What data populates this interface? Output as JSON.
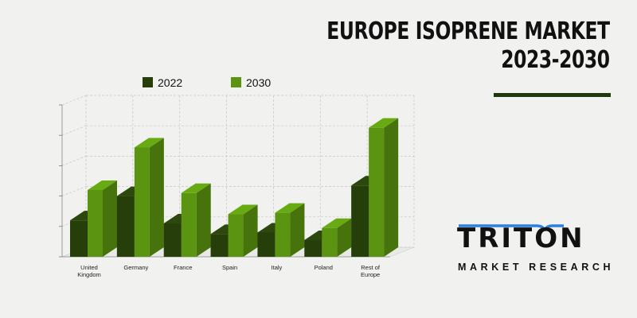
{
  "title": {
    "line1": "EUROPE ISOPRENE MARKET",
    "line2": "2023-2030"
  },
  "logo": {
    "name": "TRITON",
    "tagline": "MARKET RESEARCH"
  },
  "colors": {
    "series_2022": "#263f0a",
    "series_2030": "#5a9410",
    "accent_rule": "#1e3a0c",
    "logo_blue": "#2d7fe0"
  },
  "chart_data": {
    "type": "bar",
    "title": "",
    "xlabel": "",
    "ylabel": "",
    "categories": [
      "United Kingdom",
      "Germany",
      "France",
      "Spain",
      "Italy",
      "Poland",
      "Rest of Europe"
    ],
    "category_lines": [
      [
        "United",
        "Kingdom"
      ],
      [
        "Germany"
      ],
      [
        "France"
      ],
      [
        "Spain"
      ],
      [
        "Italy"
      ],
      [
        "Poland"
      ],
      [
        "Rest of",
        "Europe"
      ]
    ],
    "series": [
      {
        "name": "2022",
        "values": [
          1.2,
          2.0,
          1.1,
          0.75,
          0.8,
          0.55,
          2.35
        ]
      },
      {
        "name": "2030",
        "values": [
          2.2,
          3.6,
          2.1,
          1.4,
          1.45,
          0.95,
          4.25
        ]
      }
    ],
    "ylim": [
      0,
      5
    ],
    "grid": true,
    "legend_position": "top",
    "style": "3d"
  }
}
